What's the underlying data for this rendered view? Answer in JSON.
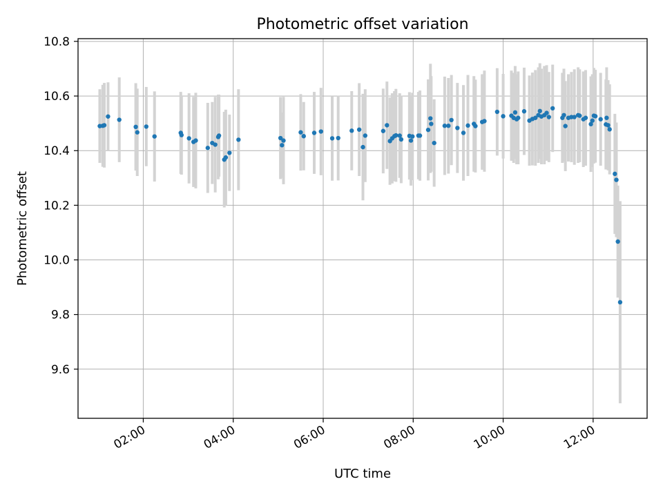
{
  "chart_data": {
    "type": "scatter",
    "title": "Photometric offset variation",
    "xlabel": "UTC time",
    "ylabel": "Photometric offset",
    "xlim": [
      "00:33",
      "13:12"
    ],
    "ylim": [
      9.42,
      10.81
    ],
    "x_ticks": [
      "02:00",
      "04:00",
      "06:00",
      "08:00",
      "10:00",
      "12:00"
    ],
    "y_ticks": [
      9.6,
      9.8,
      10.0,
      10.2,
      10.4,
      10.6,
      10.8
    ],
    "grid": true,
    "marker_color": "#1f77b4",
    "errorbar_color": "#d3d3d3",
    "series": [
      {
        "points": [
          {
            "t": "01:02",
            "y": 10.49,
            "e": 0.135
          },
          {
            "t": "01:06",
            "y": 10.491,
            "e": 0.15
          },
          {
            "t": "01:08",
            "y": 10.493,
            "e": 0.155
          },
          {
            "t": "01:13",
            "y": 10.525,
            "e": 0.125
          },
          {
            "t": "01:28",
            "y": 10.513,
            "e": 0.155
          },
          {
            "t": "01:50",
            "y": 10.487,
            "e": 0.16
          },
          {
            "t": "01:52",
            "y": 10.467,
            "e": 0.16
          },
          {
            "t": "02:04",
            "y": 10.488,
            "e": 0.145
          },
          {
            "t": "02:15",
            "y": 10.452,
            "e": 0.165
          },
          {
            "t": "02:50",
            "y": 10.465,
            "e": 0.15
          },
          {
            "t": "02:51",
            "y": 10.457,
            "e": 0.145
          },
          {
            "t": "03:01",
            "y": 10.445,
            "e": 0.165
          },
          {
            "t": "03:07",
            "y": 10.432,
            "e": 0.165
          },
          {
            "t": "03:10",
            "y": 10.437,
            "e": 0.175
          },
          {
            "t": "03:26",
            "y": 10.41,
            "e": 0.165
          },
          {
            "t": "03:32",
            "y": 10.428,
            "e": 0.15
          },
          {
            "t": "03:36",
            "y": 10.422,
            "e": 0.175
          },
          {
            "t": "03:40",
            "y": 10.45,
            "e": 0.155
          },
          {
            "t": "03:41",
            "y": 10.455,
            "e": 0.15
          },
          {
            "t": "03:48",
            "y": 10.367,
            "e": 0.175
          },
          {
            "t": "03:50",
            "y": 10.375,
            "e": 0.175
          },
          {
            "t": "03:55",
            "y": 10.392,
            "e": 0.14
          },
          {
            "t": "04:07",
            "y": 10.44,
            "e": 0.185
          },
          {
            "t": "05:03",
            "y": 10.446,
            "e": 0.15
          },
          {
            "t": "05:05",
            "y": 10.42,
            "e": 0.12
          },
          {
            "t": "05:07",
            "y": 10.437,
            "e": 0.16
          },
          {
            "t": "05:30",
            "y": 10.467,
            "e": 0.14
          },
          {
            "t": "05:34",
            "y": 10.453,
            "e": 0.125
          },
          {
            "t": "05:48",
            "y": 10.465,
            "e": 0.15
          },
          {
            "t": "05:57",
            "y": 10.47,
            "e": 0.16
          },
          {
            "t": "06:12",
            "y": 10.445,
            "e": 0.155
          },
          {
            "t": "06:20",
            "y": 10.446,
            "e": 0.155
          },
          {
            "t": "06:38",
            "y": 10.473,
            "e": 0.145
          },
          {
            "t": "06:48",
            "y": 10.477,
            "e": 0.17
          },
          {
            "t": "06:53",
            "y": 10.413,
            "e": 0.195
          },
          {
            "t": "06:56",
            "y": 10.455,
            "e": 0.17
          },
          {
            "t": "07:20",
            "y": 10.472,
            "e": 0.155
          },
          {
            "t": "07:25",
            "y": 10.493,
            "e": 0.16
          },
          {
            "t": "07:29",
            "y": 10.435,
            "e": 0.16
          },
          {
            "t": "07:32",
            "y": 10.445,
            "e": 0.165
          },
          {
            "t": "07:35",
            "y": 10.453,
            "e": 0.165
          },
          {
            "t": "07:37",
            "y": 10.456,
            "e": 0.17
          },
          {
            "t": "07:42",
            "y": 10.455,
            "e": 0.155
          },
          {
            "t": "07:44",
            "y": 10.441,
            "e": 0.16
          },
          {
            "t": "07:55",
            "y": 10.454,
            "e": 0.16
          },
          {
            "t": "07:57",
            "y": 10.437,
            "e": 0.165
          },
          {
            "t": "07:59",
            "y": 10.452,
            "e": 0.16
          },
          {
            "t": "08:07",
            "y": 10.455,
            "e": 0.16
          },
          {
            "t": "08:09",
            "y": 10.455,
            "e": 0.165
          },
          {
            "t": "08:20",
            "y": 10.476,
            "e": 0.185
          },
          {
            "t": "08:23",
            "y": 10.518,
            "e": 0.2
          },
          {
            "t": "08:24",
            "y": 10.498,
            "e": 0.175
          },
          {
            "t": "08:28",
            "y": 10.428,
            "e": 0.16
          },
          {
            "t": "08:42",
            "y": 10.491,
            "e": 0.18
          },
          {
            "t": "08:47",
            "y": 10.491,
            "e": 0.175
          },
          {
            "t": "08:51",
            "y": 10.512,
            "e": 0.165
          },
          {
            "t": "08:59",
            "y": 10.483,
            "e": 0.165
          },
          {
            "t": "09:07",
            "y": 10.465,
            "e": 0.175
          },
          {
            "t": "09:13",
            "y": 10.492,
            "e": 0.185
          },
          {
            "t": "09:21",
            "y": 10.498,
            "e": 0.175
          },
          {
            "t": "09:23",
            "y": 10.49,
            "e": 0.17
          },
          {
            "t": "09:32",
            "y": 10.505,
            "e": 0.175
          },
          {
            "t": "09:35",
            "y": 10.508,
            "e": 0.185
          },
          {
            "t": "09:52",
            "y": 10.542,
            "e": 0.16
          },
          {
            "t": "10:00",
            "y": 10.526,
            "e": 0.155
          },
          {
            "t": "10:11",
            "y": 10.528,
            "e": 0.165
          },
          {
            "t": "10:14",
            "y": 10.52,
            "e": 0.165
          },
          {
            "t": "10:16",
            "y": 10.54,
            "e": 0.17
          },
          {
            "t": "10:18",
            "y": 10.515,
            "e": 0.165
          },
          {
            "t": "10:20",
            "y": 10.52,
            "e": 0.17
          },
          {
            "t": "10:28",
            "y": 10.544,
            "e": 0.16
          },
          {
            "t": "10:35",
            "y": 10.51,
            "e": 0.165
          },
          {
            "t": "10:39",
            "y": 10.516,
            "e": 0.17
          },
          {
            "t": "10:43",
            "y": 10.52,
            "e": 0.175
          },
          {
            "t": "10:47",
            "y": 10.53,
            "e": 0.175
          },
          {
            "t": "10:49",
            "y": 10.545,
            "e": 0.175
          },
          {
            "t": "10:51",
            "y": 10.525,
            "e": 0.175
          },
          {
            "t": "10:55",
            "y": 10.53,
            "e": 0.18
          },
          {
            "t": "10:58",
            "y": 10.538,
            "e": 0.175
          },
          {
            "t": "11:01",
            "y": 10.523,
            "e": 0.165
          },
          {
            "t": "11:06",
            "y": 10.555,
            "e": 0.16
          },
          {
            "t": "11:19",
            "y": 10.52,
            "e": 0.165
          },
          {
            "t": "11:21",
            "y": 10.53,
            "e": 0.17
          },
          {
            "t": "11:23",
            "y": 10.49,
            "e": 0.165
          },
          {
            "t": "11:27",
            "y": 10.52,
            "e": 0.16
          },
          {
            "t": "11:31",
            "y": 10.523,
            "e": 0.165
          },
          {
            "t": "11:35",
            "y": 10.523,
            "e": 0.175
          },
          {
            "t": "11:40",
            "y": 10.53,
            "e": 0.175
          },
          {
            "t": "11:42",
            "y": 10.528,
            "e": 0.17
          },
          {
            "t": "11:47",
            "y": 10.515,
            "e": 0.175
          },
          {
            "t": "11:50",
            "y": 10.52,
            "e": 0.175
          },
          {
            "t": "11:57",
            "y": 10.497,
            "e": 0.175
          },
          {
            "t": "11:59",
            "y": 10.51,
            "e": 0.17
          },
          {
            "t": "12:01",
            "y": 10.528,
            "e": 0.175
          },
          {
            "t": "12:03",
            "y": 10.526,
            "e": 0.17
          },
          {
            "t": "12:10",
            "y": 10.515,
            "e": 0.17
          },
          {
            "t": "12:17",
            "y": 10.496,
            "e": 0.165
          },
          {
            "t": "12:18",
            "y": 10.52,
            "e": 0.185
          },
          {
            "t": "12:20",
            "y": 10.493,
            "e": 0.165
          },
          {
            "t": "12:22",
            "y": 10.478,
            "e": 0.165
          },
          {
            "t": "12:29",
            "y": 10.315,
            "e": 0.22
          },
          {
            "t": "12:31",
            "y": 10.293,
            "e": 0.21
          },
          {
            "t": "12:33",
            "y": 10.067,
            "e": 0.205
          },
          {
            "t": "12:36",
            "y": 9.845,
            "e": 0.37
          }
        ]
      }
    ]
  }
}
